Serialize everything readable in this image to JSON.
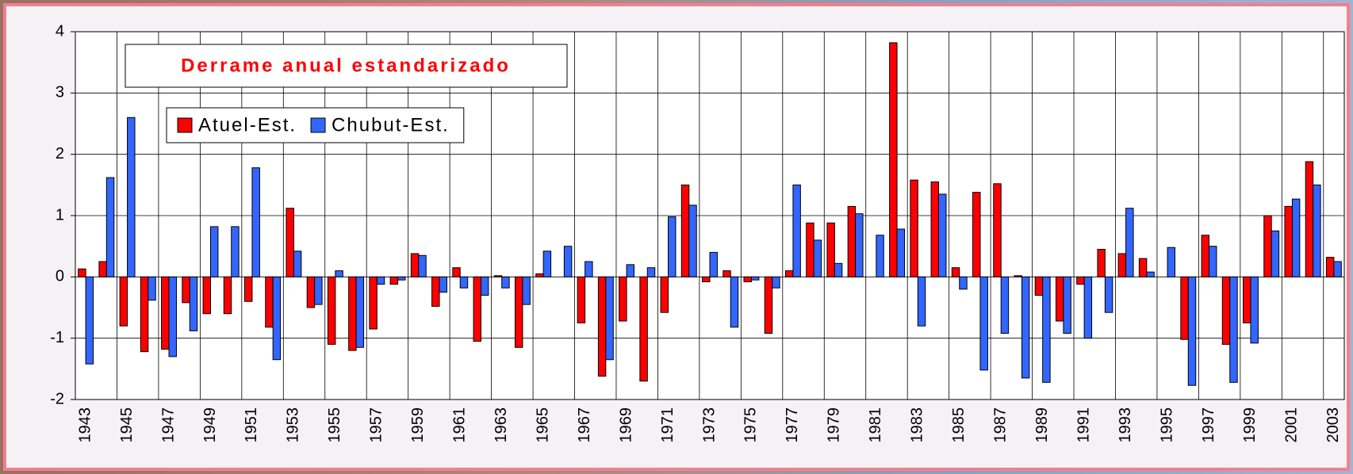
{
  "chart_data": {
    "type": "bar",
    "title": "Derrame anual estandarizado",
    "categories": [
      "1943",
      null,
      "1945",
      null,
      "1947",
      null,
      "1949",
      null,
      "1951",
      null,
      "1953",
      null,
      "1955",
      null,
      "1957",
      null,
      "1959",
      null,
      "1961",
      null,
      "1963",
      null,
      "1965",
      null,
      "1967",
      null,
      "1969",
      null,
      "1971",
      null,
      "1973",
      null,
      "1975",
      null,
      "1977",
      null,
      "1979",
      null,
      "1981",
      null,
      "1983",
      null,
      "1985",
      null,
      "1987",
      null,
      "1989",
      null,
      "1991",
      null,
      "1993",
      null,
      "1995",
      null,
      "1997",
      null,
      "1999",
      null,
      "2001",
      null,
      "2003"
    ],
    "series": [
      {
        "name": "Atuel-Est.",
        "color": "#ff0000",
        "values": [
          0.13,
          0.25,
          -0.8,
          -1.22,
          -1.18,
          -0.42,
          -0.6,
          -0.6,
          -0.4,
          -0.82,
          1.12,
          -0.5,
          -1.1,
          -1.2,
          -0.85,
          -0.12,
          0.38,
          -0.48,
          0.15,
          -1.05,
          0.02,
          -1.15,
          0.05,
          0,
          -0.75,
          -1.62,
          -0.72,
          -1.7,
          -0.58,
          1.5,
          -0.08,
          0.1,
          -0.08,
          -0.92,
          0.1,
          0.88,
          0.88,
          1.15,
          0,
          3.82,
          1.58,
          1.55,
          0.15,
          1.38,
          1.52,
          0.02,
          -0.3,
          -0.72,
          -0.12,
          0.45,
          0.38,
          0.3,
          0,
          -1.02,
          0.68,
          -1.1,
          -0.75,
          1.0,
          1.15,
          1.88,
          0.32
        ]
      },
      {
        "name": "Chubut-Est.",
        "color": "#3366ff",
        "values": [
          -1.42,
          1.62,
          2.6,
          -0.38,
          -1.3,
          -0.88,
          0.82,
          0.82,
          1.78,
          -1.35,
          0.42,
          -0.45,
          0.1,
          -1.15,
          -0.12,
          -0.05,
          0.35,
          -0.25,
          -0.18,
          -0.3,
          -0.18,
          -0.45,
          0.42,
          0.5,
          0.25,
          -1.35,
          0.2,
          0.15,
          0.98,
          1.17,
          0.4,
          -0.82,
          -0.05,
          -0.18,
          1.5,
          0.6,
          0.22,
          1.03,
          0.68,
          0.78,
          -0.8,
          1.35,
          -0.2,
          -1.52,
          -0.92,
          -1.65,
          -1.72,
          -0.92,
          -1.0,
          -0.58,
          1.12,
          0.08,
          0.48,
          -1.77,
          0.5,
          -1.72,
          -1.08,
          0.75,
          1.27,
          1.5,
          0.25
        ]
      }
    ],
    "ylim": [
      -2,
      4
    ],
    "yticks": [
      -2,
      -1,
      0,
      1,
      2,
      3,
      4
    ],
    "grid": true,
    "legend": "upper left"
  }
}
